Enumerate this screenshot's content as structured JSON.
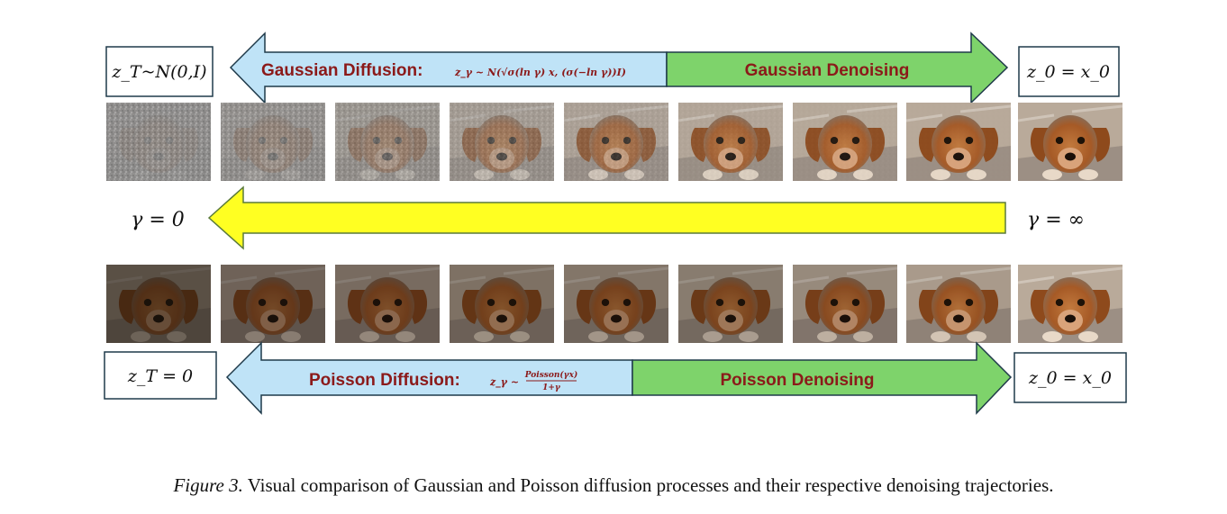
{
  "top_row": {
    "start_box": "z_T~N(0,I)",
    "end_box": "z_0 = x_0",
    "diffusion_label": "Gaussian Diffusion:",
    "diffusion_formula": "z_γ ~ N(√σ(ln γ) x, (σ(−ln γ))I)",
    "denoising_label": "Gaussian Denoising",
    "frame_noise_levels": [
      0.92,
      0.82,
      0.68,
      0.5,
      0.32,
      0.16,
      0.08,
      0.03,
      0.0
    ]
  },
  "middle_axis": {
    "left_label": "γ = 0",
    "right_label": "γ = ∞"
  },
  "bottom_row": {
    "start_box": "z_T = 0",
    "end_box": "z_0 = x_0",
    "diffusion_label": "Poisson Diffusion:",
    "diffusion_formula_lhs": "z_γ ~",
    "diffusion_formula_num": "Poisson(γx)",
    "diffusion_formula_den": "1+γ",
    "denoising_label": "Poisson Denoising",
    "frame_brightness_levels": [
      0.3,
      0.45,
      0.52,
      0.56,
      0.6,
      0.64,
      0.75,
      0.88,
      1.0
    ]
  },
  "colors": {
    "diffusion_fill": "#bfe3f7",
    "denoising_fill": "#7ed36b",
    "gamma_arrow_fill": "#ffff22",
    "arrow_stroke": "#1f3a4a",
    "title_text": "#8b1a1a"
  },
  "caption": {
    "figure_label": "Figure 3.",
    "text": "Visual comparison of Gaussian and Poisson diffusion processes and their respective denoising trajectories."
  }
}
